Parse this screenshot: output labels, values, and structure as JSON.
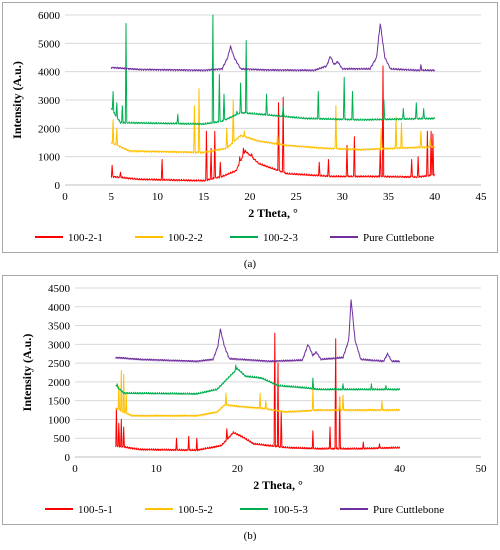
{
  "chart_data": [
    {
      "type": "line",
      "panel_label": "(a)",
      "xlabel": "2 Theta, °",
      "ylabel": "Intensity (A.u.)",
      "xlim": [
        0,
        45
      ],
      "ylim": [
        0,
        6000
      ],
      "xticks": [
        0,
        5,
        10,
        15,
        20,
        25,
        30,
        35,
        40,
        45
      ],
      "yticks": [
        0,
        1000,
        2000,
        3000,
        4000,
        5000,
        6000
      ],
      "grid": "horizontal",
      "legend_position": "bottom",
      "series": [
        {
          "name": "100-2-1",
          "color": "#ff0000",
          "baseline": 200,
          "smooth": [
            [
              5,
              300
            ],
            [
              8,
              200
            ],
            [
              15,
              150
            ],
            [
              17,
              300
            ],
            [
              18.5,
              500
            ],
            [
              19.5,
              1200
            ],
            [
              21,
              750
            ],
            [
              24,
              400
            ],
            [
              29,
              300
            ],
            [
              34,
              300
            ],
            [
              38,
              280
            ],
            [
              40,
              350
            ]
          ],
          "peaks": [
            [
              5.1,
              700
            ],
            [
              6,
              450
            ],
            [
              10.5,
              900
            ],
            [
              15.3,
              1900
            ],
            [
              15.8,
              1300
            ],
            [
              16.2,
              1900
            ],
            [
              16.8,
              800
            ],
            [
              18.9,
              1000
            ],
            [
              19.3,
              1300
            ],
            [
              20.2,
              1100
            ],
            [
              23.1,
              2900
            ],
            [
              23.6,
              3100
            ],
            [
              27.5,
              800
            ],
            [
              28.5,
              900
            ],
            [
              30.5,
              1400
            ],
            [
              31.3,
              1700
            ],
            [
              34.1,
              1300
            ],
            [
              34.4,
              4200
            ],
            [
              37.5,
              900
            ],
            [
              38.2,
              1000
            ],
            [
              39.2,
              1900
            ],
            [
              39.6,
              1900
            ],
            [
              39.8,
              1800
            ]
          ]
        },
        {
          "name": "100-2-2",
          "color": "#ffc000",
          "baseline": 1150,
          "smooth": [
            [
              5,
              1500
            ],
            [
              7,
              1200
            ],
            [
              15,
              1150
            ],
            [
              17.5,
              1300
            ],
            [
              19,
              1750
            ],
            [
              21,
              1550
            ],
            [
              24,
              1400
            ],
            [
              28,
              1300
            ],
            [
              32,
              1250
            ],
            [
              36,
              1300
            ],
            [
              40,
              1350
            ]
          ],
          "peaks": [
            [
              5.2,
              2300
            ],
            [
              5.6,
              2000
            ],
            [
              14,
              2800
            ],
            [
              14.5,
              3400
            ],
            [
              17.5,
              2000
            ],
            [
              18.2,
              3000
            ],
            [
              19.4,
              1900
            ],
            [
              23,
              1800
            ],
            [
              29.3,
              2800
            ],
            [
              34.2,
              2000
            ],
            [
              35.8,
              2400
            ],
            [
              36.4,
              2200
            ],
            [
              38.5,
              1900
            ],
            [
              39.5,
              1600
            ]
          ]
        },
        {
          "name": "100-2-3",
          "color": "#00b050",
          "baseline": 2100,
          "smooth": [
            [
              5,
              2700
            ],
            [
              6,
              2200
            ],
            [
              15,
              2150
            ],
            [
              17,
              2250
            ],
            [
              19,
              2550
            ],
            [
              21,
              2500
            ],
            [
              26,
              2350
            ],
            [
              32,
              2300
            ],
            [
              40,
              2350
            ]
          ],
          "peaks": [
            [
              5.2,
              3300
            ],
            [
              5.6,
              2900
            ],
            [
              6.2,
              2800
            ],
            [
              6.6,
              5700
            ],
            [
              12.2,
              2500
            ],
            [
              16,
              6000
            ],
            [
              16.7,
              3900
            ],
            [
              17.2,
              3200
            ],
            [
              18.6,
              2600
            ],
            [
              19,
              3600
            ],
            [
              19.6,
              5100
            ],
            [
              21.8,
              3200
            ],
            [
              23.6,
              2800
            ],
            [
              27.4,
              3300
            ],
            [
              30.2,
              3800
            ],
            [
              31.1,
              3300
            ],
            [
              34.5,
              3000
            ],
            [
              36.6,
              2700
            ],
            [
              38,
              2900
            ],
            [
              38.8,
              2700
            ]
          ]
        },
        {
          "name": "Pure Cuttlebone",
          "color": "#7030a0",
          "baseline": 4050,
          "smooth": [
            [
              5,
              4150
            ],
            [
              8,
              4080
            ],
            [
              15,
              4050
            ],
            [
              17,
              4100
            ],
            [
              17.6,
              4500
            ],
            [
              17.9,
              4900
            ],
            [
              18.3,
              4500
            ],
            [
              19,
              4100
            ],
            [
              22,
              4060
            ],
            [
              27,
              4050
            ],
            [
              28.3,
              4200
            ],
            [
              28.7,
              4550
            ],
            [
              29.1,
              4250
            ],
            [
              29.5,
              4350
            ],
            [
              30,
              4100
            ],
            [
              33,
              4100
            ],
            [
              33.7,
              4500
            ],
            [
              34.1,
              5700
            ],
            [
              34.6,
              4500
            ],
            [
              35.2,
              4100
            ],
            [
              38,
              4050
            ],
            [
              40,
              4050
            ]
          ],
          "peaks": [
            [
              38.5,
              4250
            ]
          ]
        }
      ]
    },
    {
      "type": "line",
      "panel_label": "(b)",
      "xlabel": "2 Theta, °",
      "ylabel": "Intensity (A.u.)",
      "xlim": [
        0,
        50
      ],
      "ylim": [
        0,
        4500
      ],
      "xticks": [
        0,
        10,
        20,
        30,
        40,
        50
      ],
      "yticks": [
        0,
        500,
        1000,
        1500,
        2000,
        2500,
        3000,
        3500,
        4000,
        4500
      ],
      "grid": "horizontal",
      "legend_position": "bottom",
      "series": [
        {
          "name": "100-5-1",
          "color": "#ff0000",
          "baseline": 200,
          "smooth": [
            [
              5,
              300
            ],
            [
              8,
              200
            ],
            [
              15,
              180
            ],
            [
              18,
              300
            ],
            [
              19.5,
              650
            ],
            [
              20.5,
              550
            ],
            [
              22,
              350
            ],
            [
              26,
              250
            ],
            [
              30,
              220
            ],
            [
              35,
              220
            ],
            [
              40,
              250
            ]
          ],
          "peaks": [
            [
              5.1,
              1300
            ],
            [
              5.4,
              900
            ],
            [
              5.7,
              1000
            ],
            [
              6,
              800
            ],
            [
              12.5,
              500
            ],
            [
              14,
              550
            ],
            [
              15,
              500
            ],
            [
              18.7,
              750
            ],
            [
              24.6,
              3300
            ],
            [
              25,
              2500
            ],
            [
              25.4,
              1200
            ],
            [
              29.3,
              700
            ],
            [
              31.4,
              800
            ],
            [
              32.1,
              3150
            ],
            [
              32.6,
              1600
            ],
            [
              35.5,
              400
            ],
            [
              37.5,
              350
            ]
          ]
        },
        {
          "name": "100-5-2",
          "color": "#ffc000",
          "baseline": 1100,
          "smooth": [
            [
              5,
              1300
            ],
            [
              7,
              1100
            ],
            [
              15,
              1100
            ],
            [
              17.5,
              1200
            ],
            [
              18.5,
              1400
            ],
            [
              20,
              1350
            ],
            [
              23,
              1300
            ],
            [
              26,
              1200
            ],
            [
              30,
              1250
            ],
            [
              35,
              1250
            ],
            [
              40,
              1250
            ]
          ],
          "peaks": [
            [
              5.4,
              1900
            ],
            [
              5.7,
              2300
            ],
            [
              6,
              2200
            ],
            [
              6.3,
              1700
            ],
            [
              18.6,
              1700
            ],
            [
              22.8,
              1700
            ],
            [
              23.5,
              1500
            ],
            [
              29.3,
              1800
            ],
            [
              32.6,
              1600
            ],
            [
              33,
              1650
            ],
            [
              37.8,
              1500
            ]
          ]
        },
        {
          "name": "100-5-3",
          "color": "#00b050",
          "baseline": 1650,
          "smooth": [
            [
              5,
              1900
            ],
            [
              6,
              1700
            ],
            [
              15,
              1680
            ],
            [
              17.5,
              1800
            ],
            [
              19.3,
              2200
            ],
            [
              20,
              2350
            ],
            [
              21,
              2150
            ],
            [
              23,
              2100
            ],
            [
              25,
              1900
            ],
            [
              28,
              1850
            ],
            [
              30,
              1800
            ],
            [
              35,
              1800
            ],
            [
              40,
              1800
            ]
          ],
          "peaks": [
            [
              5.2,
              1950
            ],
            [
              19.8,
              2450
            ],
            [
              23.4,
              2050
            ],
            [
              29.3,
              2100
            ],
            [
              33,
              1950
            ],
            [
              36.5,
              1950
            ],
            [
              38.3,
              1900
            ]
          ]
        },
        {
          "name": "Pure Cuttlebone",
          "color": "#7030a0",
          "baseline": 2550,
          "smooth": [
            [
              5,
              2650
            ],
            [
              8,
              2600
            ],
            [
              15,
              2550
            ],
            [
              17,
              2600
            ],
            [
              17.6,
              2950
            ],
            [
              17.9,
              3400
            ],
            [
              18.4,
              2950
            ],
            [
              19,
              2620
            ],
            [
              24,
              2550
            ],
            [
              28,
              2580
            ],
            [
              28.7,
              3000
            ],
            [
              29.3,
              2700
            ],
            [
              29.7,
              2800
            ],
            [
              30.3,
              2600
            ],
            [
              33,
              2650
            ],
            [
              33.7,
              3100
            ],
            [
              34,
              4200
            ],
            [
              34.5,
              3100
            ],
            [
              35.2,
              2600
            ],
            [
              38,
              2550
            ],
            [
              38.5,
              2750
            ],
            [
              39,
              2550
            ],
            [
              40,
              2550
            ]
          ],
          "peaks": []
        }
      ]
    }
  ]
}
